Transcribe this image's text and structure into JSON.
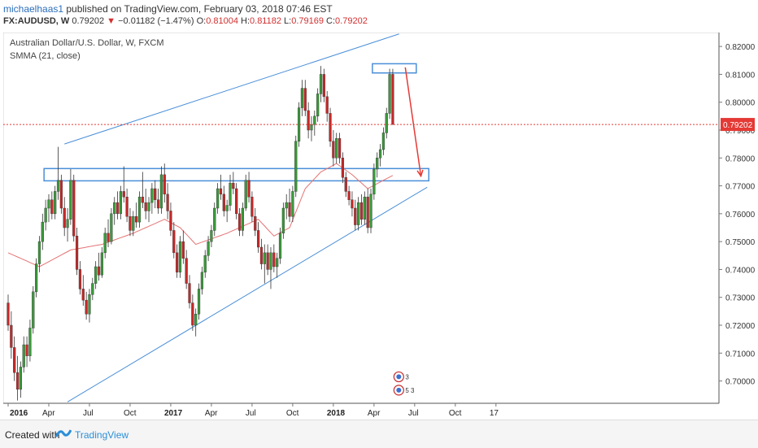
{
  "header": {
    "author": "michaelhaas1",
    "published": " published on TradingView.com, February 03, 2018 07:46 EST",
    "symbol": "FX:AUDUSD, W",
    "price": "0.79202",
    "change": "−0.01182 (−1.47%)",
    "o_label": "O:",
    "o_value": "0.81004",
    "h_label": "H:",
    "h_value": "0.81182",
    "l_label": "L:",
    "l_value": "0.79169",
    "c_label": "C:",
    "c_value": "0.79202"
  },
  "legend": {
    "title": "Australian Dollar/U.S. Dollar, W, FXCM",
    "indicator": "SMMA (21, close)"
  },
  "footer": {
    "created": "Created with",
    "brand": "TradingView"
  },
  "chart_data": {
    "type": "candlestick",
    "y_range": [
      0.692,
      0.825
    ],
    "y_ticks": [
      "0.82000",
      "0.81000",
      "0.80000",
      "0.79000",
      "0.78000",
      "0.77000",
      "0.76000",
      "0.75000",
      "0.74000",
      "0.73000",
      "0.72000",
      "0.71000",
      "0.70000"
    ],
    "x_ticks": [
      "2016",
      "Apr",
      "Jul",
      "Oct",
      "2017",
      "Apr",
      "Jul",
      "Oct",
      "2018",
      "Apr",
      "Jul",
      "Oct",
      "17"
    ],
    "bold_ticks": [
      "2016",
      "2017",
      "2018"
    ],
    "last_price_label": "0.79202",
    "last_price": 0.79202,
    "colors": {
      "up": "#3a9b3a",
      "down": "#c62828",
      "smma": "#e57373",
      "drawing": "#4a8fd8",
      "arrow": "#e53935"
    },
    "candles": [
      [
        0.728,
        0.731,
        0.718,
        0.72
      ],
      [
        0.72,
        0.725,
        0.708,
        0.712
      ],
      [
        0.712,
        0.716,
        0.7,
        0.703
      ],
      [
        0.703,
        0.709,
        0.693,
        0.697
      ],
      [
        0.697,
        0.707,
        0.694,
        0.705
      ],
      [
        0.705,
        0.716,
        0.703,
        0.713
      ],
      [
        0.713,
        0.716,
        0.705,
        0.709
      ],
      [
        0.709,
        0.722,
        0.707,
        0.719
      ],
      [
        0.719,
        0.734,
        0.717,
        0.732
      ],
      [
        0.732,
        0.744,
        0.73,
        0.742
      ],
      [
        0.742,
        0.752,
        0.739,
        0.75
      ],
      [
        0.75,
        0.76,
        0.747,
        0.757
      ],
      [
        0.757,
        0.765,
        0.754,
        0.762
      ],
      [
        0.762,
        0.767,
        0.757,
        0.765
      ],
      [
        0.765,
        0.768,
        0.758,
        0.76
      ],
      [
        0.76,
        0.77,
        0.758,
        0.768
      ],
      [
        0.768,
        0.784,
        0.765,
        0.772
      ],
      [
        0.772,
        0.774,
        0.76,
        0.762
      ],
      [
        0.762,
        0.766,
        0.752,
        0.755
      ],
      [
        0.755,
        0.762,
        0.75,
        0.758
      ],
      [
        0.758,
        0.776,
        0.756,
        0.772
      ],
      [
        0.772,
        0.774,
        0.75,
        0.752
      ],
      [
        0.752,
        0.755,
        0.738,
        0.74
      ],
      [
        0.74,
        0.743,
        0.731,
        0.733
      ],
      [
        0.733,
        0.738,
        0.727,
        0.729
      ],
      [
        0.729,
        0.732,
        0.722,
        0.724
      ],
      [
        0.724,
        0.733,
        0.721,
        0.731
      ],
      [
        0.731,
        0.737,
        0.729,
        0.735
      ],
      [
        0.735,
        0.743,
        0.733,
        0.741
      ],
      [
        0.741,
        0.746,
        0.736,
        0.738
      ],
      [
        0.738,
        0.748,
        0.737,
        0.746
      ],
      [
        0.746,
        0.755,
        0.744,
        0.753
      ],
      [
        0.753,
        0.758,
        0.748,
        0.75
      ],
      [
        0.75,
        0.762,
        0.749,
        0.76
      ],
      [
        0.76,
        0.766,
        0.756,
        0.764
      ],
      [
        0.764,
        0.768,
        0.758,
        0.76
      ],
      [
        0.76,
        0.77,
        0.758,
        0.768
      ],
      [
        0.768,
        0.777,
        0.764,
        0.766
      ],
      [
        0.766,
        0.769,
        0.757,
        0.759
      ],
      [
        0.759,
        0.762,
        0.752,
        0.754
      ],
      [
        0.754,
        0.761,
        0.752,
        0.759
      ],
      [
        0.759,
        0.764,
        0.755,
        0.757
      ],
      [
        0.757,
        0.768,
        0.755,
        0.766
      ],
      [
        0.766,
        0.775,
        0.762,
        0.764
      ],
      [
        0.764,
        0.769,
        0.758,
        0.761
      ],
      [
        0.761,
        0.766,
        0.757,
        0.764
      ],
      [
        0.764,
        0.771,
        0.76,
        0.769
      ],
      [
        0.769,
        0.772,
        0.762,
        0.765
      ],
      [
        0.765,
        0.769,
        0.76,
        0.762
      ],
      [
        0.762,
        0.777,
        0.76,
        0.774
      ],
      [
        0.774,
        0.778,
        0.764,
        0.767
      ],
      [
        0.767,
        0.771,
        0.758,
        0.761
      ],
      [
        0.761,
        0.764,
        0.752,
        0.754
      ],
      [
        0.754,
        0.757,
        0.744,
        0.746
      ],
      [
        0.746,
        0.749,
        0.737,
        0.739
      ],
      [
        0.739,
        0.752,
        0.737,
        0.75
      ],
      [
        0.75,
        0.754,
        0.742,
        0.744
      ],
      [
        0.744,
        0.747,
        0.733,
        0.735
      ],
      [
        0.735,
        0.738,
        0.726,
        0.728
      ],
      [
        0.728,
        0.731,
        0.718,
        0.72
      ],
      [
        0.72,
        0.726,
        0.716,
        0.724
      ],
      [
        0.724,
        0.735,
        0.722,
        0.733
      ],
      [
        0.733,
        0.741,
        0.731,
        0.739
      ],
      [
        0.739,
        0.747,
        0.737,
        0.745
      ],
      [
        0.745,
        0.752,
        0.743,
        0.75
      ],
      [
        0.75,
        0.756,
        0.748,
        0.754
      ],
      [
        0.754,
        0.764,
        0.752,
        0.762
      ],
      [
        0.762,
        0.771,
        0.76,
        0.769
      ],
      [
        0.769,
        0.774,
        0.765,
        0.767
      ],
      [
        0.767,
        0.77,
        0.759,
        0.761
      ],
      [
        0.761,
        0.765,
        0.757,
        0.763
      ],
      [
        0.763,
        0.774,
        0.761,
        0.771
      ],
      [
        0.771,
        0.775,
        0.767,
        0.769
      ],
      [
        0.769,
        0.771,
        0.758,
        0.76
      ],
      [
        0.76,
        0.762,
        0.752,
        0.754
      ],
      [
        0.754,
        0.764,
        0.752,
        0.762
      ],
      [
        0.762,
        0.774,
        0.761,
        0.772
      ],
      [
        0.772,
        0.775,
        0.764,
        0.766
      ],
      [
        0.766,
        0.768,
        0.757,
        0.759
      ],
      [
        0.759,
        0.762,
        0.752,
        0.754
      ],
      [
        0.754,
        0.757,
        0.746,
        0.748
      ],
      [
        0.748,
        0.751,
        0.74,
        0.742
      ],
      [
        0.742,
        0.749,
        0.735,
        0.746
      ],
      [
        0.746,
        0.749,
        0.738,
        0.74
      ],
      [
        0.74,
        0.748,
        0.733,
        0.746
      ],
      [
        0.746,
        0.749,
        0.739,
        0.741
      ],
      [
        0.741,
        0.746,
        0.737,
        0.744
      ],
      [
        0.744,
        0.755,
        0.742,
        0.753
      ],
      [
        0.753,
        0.764,
        0.751,
        0.762
      ],
      [
        0.762,
        0.767,
        0.758,
        0.764
      ],
      [
        0.764,
        0.769,
        0.757,
        0.759
      ],
      [
        0.759,
        0.77,
        0.757,
        0.768
      ],
      [
        0.768,
        0.788,
        0.766,
        0.786
      ],
      [
        0.786,
        0.8,
        0.784,
        0.798
      ],
      [
        0.798,
        0.808,
        0.795,
        0.805
      ],
      [
        0.805,
        0.808,
        0.795,
        0.797
      ],
      [
        0.797,
        0.8,
        0.787,
        0.79
      ],
      [
        0.79,
        0.795,
        0.786,
        0.792
      ],
      [
        0.792,
        0.797,
        0.788,
        0.795
      ],
      [
        0.795,
        0.805,
        0.793,
        0.803
      ],
      [
        0.803,
        0.813,
        0.8,
        0.81
      ],
      [
        0.81,
        0.812,
        0.8,
        0.802
      ],
      [
        0.802,
        0.804,
        0.793,
        0.796
      ],
      [
        0.796,
        0.798,
        0.784,
        0.786
      ],
      [
        0.786,
        0.79,
        0.777,
        0.78
      ],
      [
        0.78,
        0.789,
        0.778,
        0.787
      ],
      [
        0.787,
        0.789,
        0.778,
        0.78
      ],
      [
        0.78,
        0.782,
        0.771,
        0.773
      ],
      [
        0.773,
        0.775,
        0.766,
        0.768
      ],
      [
        0.768,
        0.77,
        0.763,
        0.765
      ],
      [
        0.765,
        0.768,
        0.759,
        0.762
      ],
      [
        0.762,
        0.765,
        0.754,
        0.756
      ],
      [
        0.756,
        0.766,
        0.754,
        0.764
      ],
      [
        0.764,
        0.767,
        0.756,
        0.758
      ],
      [
        0.758,
        0.768,
        0.756,
        0.766
      ],
      [
        0.766,
        0.769,
        0.753,
        0.755
      ],
      [
        0.755,
        0.769,
        0.753,
        0.767
      ],
      [
        0.767,
        0.778,
        0.765,
        0.776
      ],
      [
        0.776,
        0.782,
        0.773,
        0.78
      ],
      [
        0.78,
        0.785,
        0.777,
        0.783
      ],
      [
        0.783,
        0.791,
        0.781,
        0.789
      ],
      [
        0.789,
        0.798,
        0.787,
        0.796
      ],
      [
        0.796,
        0.812,
        0.794,
        0.81
      ],
      [
        0.81,
        0.812,
        0.792,
        0.792
      ]
    ],
    "smma_anchors": [
      [
        0,
        0.746
      ],
      [
        10,
        0.741
      ],
      [
        20,
        0.747
      ],
      [
        30,
        0.749
      ],
      [
        40,
        0.753
      ],
      [
        50,
        0.758
      ],
      [
        55,
        0.755
      ],
      [
        60,
        0.749
      ],
      [
        70,
        0.753
      ],
      [
        80,
        0.758
      ],
      [
        85,
        0.752
      ],
      [
        90,
        0.755
      ],
      [
        95,
        0.769
      ],
      [
        100,
        0.775
      ],
      [
        105,
        0.778
      ],
      [
        110,
        0.774
      ],
      [
        115,
        0.769
      ],
      [
        120,
        0.772
      ],
      [
        127,
        0.776
      ]
    ],
    "zones": [
      {
        "name": "resistance-zone",
        "from_bar": 117,
        "to_bar": 130,
        "low": 0.8105,
        "high": 0.8138
      },
      {
        "name": "support-zone",
        "from_bar": 12,
        "to_bar": 134,
        "low": 0.7718,
        "high": 0.7762
      }
    ],
    "trendlines": [
      {
        "name": "upper-channel-line",
        "from": [
          18,
          0.785
        ],
        "to": [
          125,
          0.8245
        ]
      },
      {
        "name": "lower-channel-line",
        "from": [
          19,
          0.6925
        ],
        "to": [
          134,
          0.7695
        ]
      }
    ],
    "projection_arrow": {
      "from": [
        127,
        0.8125
      ],
      "to": [
        132,
        0.7735
      ]
    },
    "events": [
      {
        "name": "event-badge-3",
        "label": "3",
        "bar": 127,
        "value": 0.7015
      },
      {
        "name": "event-badge-53",
        "label": "5 3",
        "bar": 127,
        "value": 0.6967
      }
    ]
  }
}
